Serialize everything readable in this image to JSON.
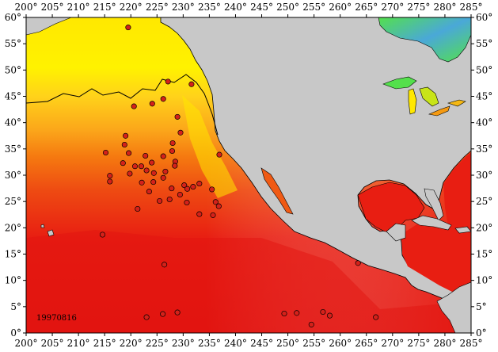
{
  "map": {
    "date_stamp": "19970816",
    "x_ticks": [
      "200°",
      "205°",
      "210°",
      "215°",
      "220°",
      "225°",
      "230°",
      "235°",
      "240°",
      "245°",
      "250°",
      "255°",
      "260°",
      "265°",
      "270°",
      "275°",
      "280°",
      "285°"
    ],
    "y_ticks": [
      "60°",
      "55°",
      "50°",
      "45°",
      "40°",
      "35°",
      "30°",
      "25°",
      "20°",
      "15°",
      "10°",
      "5°",
      "0°"
    ],
    "lon_range": [
      200,
      285
    ],
    "lat_range": [
      0,
      60
    ],
    "colors": {
      "land": "#c8c8c8",
      "warm": "#e81e12",
      "orange": "#f57a10",
      "yellow": "#fff200",
      "green": "#54e04c",
      "marker": "#d4211a"
    }
  },
  "chart_data": {
    "type": "scatter",
    "title": "",
    "xlabel": "",
    "ylabel": "",
    "xlim": [
      200,
      285
    ],
    "ylim": [
      0,
      60
    ],
    "xticks": [
      200,
      205,
      210,
      215,
      220,
      225,
      230,
      235,
      240,
      245,
      250,
      255,
      260,
      265,
      270,
      275,
      280,
      285
    ],
    "yticks": [
      0,
      5,
      10,
      15,
      20,
      25,
      30,
      35,
      40,
      45,
      50,
      55,
      60
    ],
    "grid": false,
    "annotations": [
      "19970816"
    ],
    "series": [
      {
        "marker_color": "#d4211a",
        "points": [
          [
            219.5,
            58.1
          ],
          [
            220.6,
            43.1
          ],
          [
            224.1,
            43.6
          ],
          [
            228.9,
            41.1
          ],
          [
            229.5,
            38.1
          ],
          [
            228.0,
            36.1
          ],
          [
            227.9,
            34.6
          ],
          [
            226.2,
            44.5
          ],
          [
            227.1,
            47.8
          ],
          [
            231.6,
            47.3
          ],
          [
            215.2,
            34.3
          ],
          [
            219.0,
            37.5
          ],
          [
            218.8,
            35.8
          ],
          [
            219.6,
            34.2
          ],
          [
            222.8,
            33.7
          ],
          [
            224.0,
            32.4
          ],
          [
            226.2,
            33.6
          ],
          [
            228.5,
            32.6
          ],
          [
            218.5,
            32.3
          ],
          [
            219.8,
            30.3
          ],
          [
            220.8,
            31.7
          ],
          [
            222.0,
            31.7
          ],
          [
            223.0,
            30.9
          ],
          [
            224.4,
            30.4
          ],
          [
            226.6,
            30.7
          ],
          [
            228.4,
            31.8
          ],
          [
            216.0,
            29.9
          ],
          [
            216.0,
            28.8
          ],
          [
            222.1,
            28.6
          ],
          [
            224.3,
            28.7
          ],
          [
            226.2,
            29.5
          ],
          [
            227.8,
            27.5
          ],
          [
            230.2,
            28.1
          ],
          [
            230.8,
            27.4
          ],
          [
            231.9,
            27.8
          ],
          [
            233.1,
            28.4
          ],
          [
            221.3,
            23.6
          ],
          [
            223.5,
            26.9
          ],
          [
            225.5,
            25.1
          ],
          [
            227.4,
            25.4
          ],
          [
            229.4,
            26.3
          ],
          [
            230.7,
            24.8
          ],
          [
            233.1,
            22.6
          ],
          [
            235.5,
            27.3
          ],
          [
            236.2,
            24.9
          ],
          [
            236.8,
            24.1
          ],
          [
            235.7,
            22.4
          ],
          [
            214.6,
            18.7
          ],
          [
            226.4,
            13.0
          ],
          [
            223.0,
            3.0
          ],
          [
            226.1,
            3.6
          ],
          [
            228.9,
            3.9
          ],
          [
            249.3,
            3.7
          ],
          [
            251.7,
            3.8
          ],
          [
            254.5,
            1.6
          ],
          [
            256.7,
            4.0
          ],
          [
            258.0,
            3.3
          ],
          [
            263.4,
            13.3
          ],
          [
            266.8,
            3.0
          ],
          [
            236.9,
            33.9
          ]
        ]
      }
    ]
  }
}
